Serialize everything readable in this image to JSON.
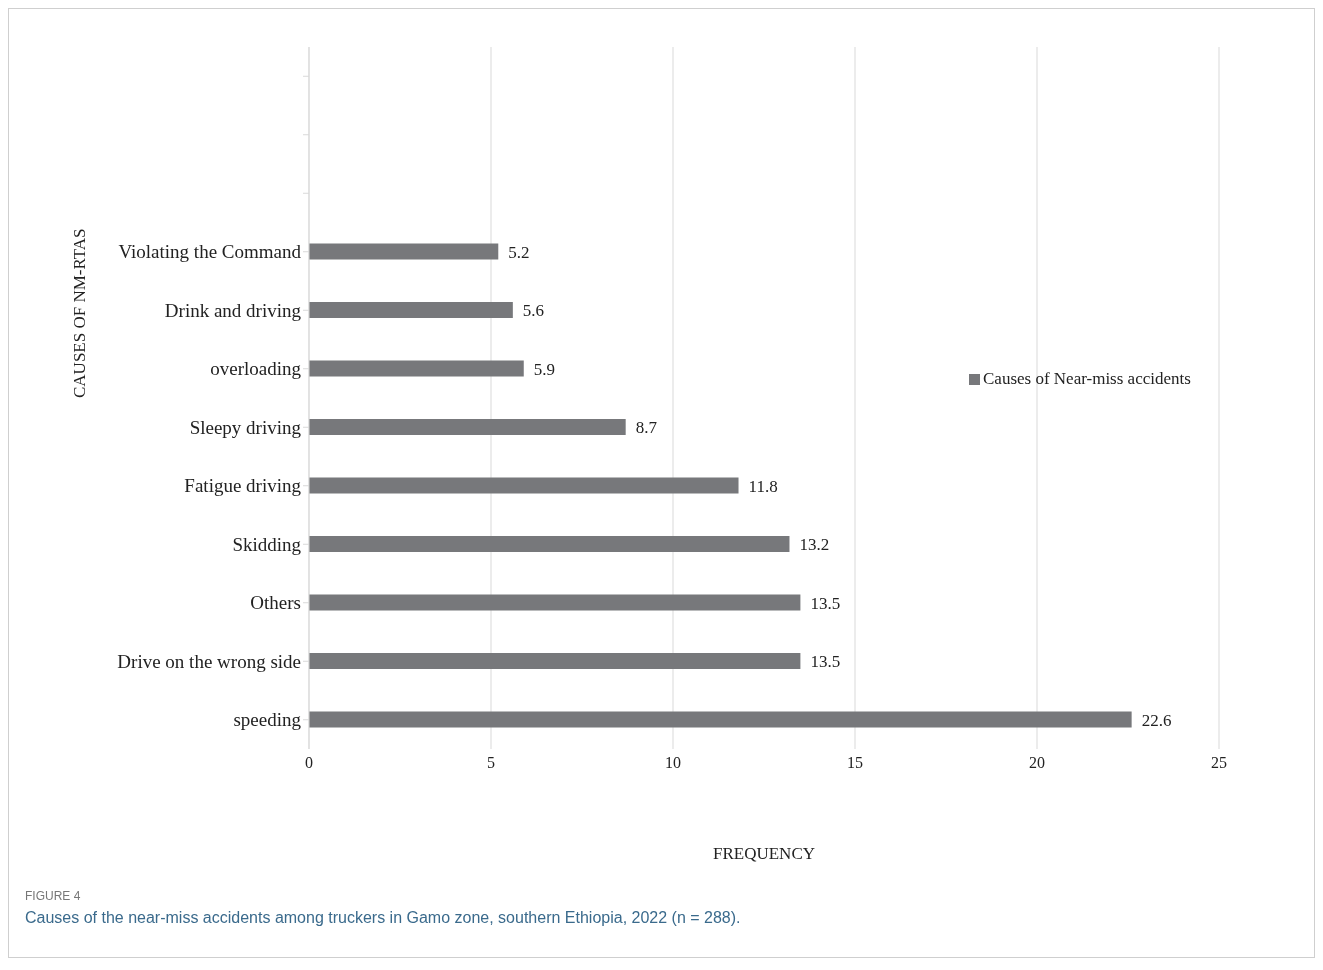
{
  "chart_data": {
    "type": "bar",
    "orientation": "horizontal",
    "categories": [
      null,
      null,
      null,
      "Violating the Command",
      "Drink and driving",
      "overloading",
      "Sleepy driving",
      "Fatigue driving",
      "Skidding",
      "Others",
      "Drive on the wrong side",
      "speeding"
    ],
    "series": [
      {
        "name": "Causes of Near-miss accidents",
        "color": "#77787b",
        "values": [
          null,
          null,
          null,
          5.2,
          5.6,
          5.9,
          8.7,
          11.8,
          13.2,
          13.5,
          13.5,
          22.6
        ]
      }
    ],
    "xlim": [
      0,
      25
    ],
    "xticks": [
      0,
      5,
      10,
      15,
      20,
      25
    ],
    "xlabel": "FREQUENCY",
    "ylabel": "CAUSES OF NM-RTAS",
    "data_labels": true,
    "grid": "x",
    "legend": "right",
    "annotations": [
      "FIGURE 4",
      "Causes of the near-miss accidents among truckers in Gamo zone, southern Ethiopia, 2022 (n = 288)."
    ]
  }
}
